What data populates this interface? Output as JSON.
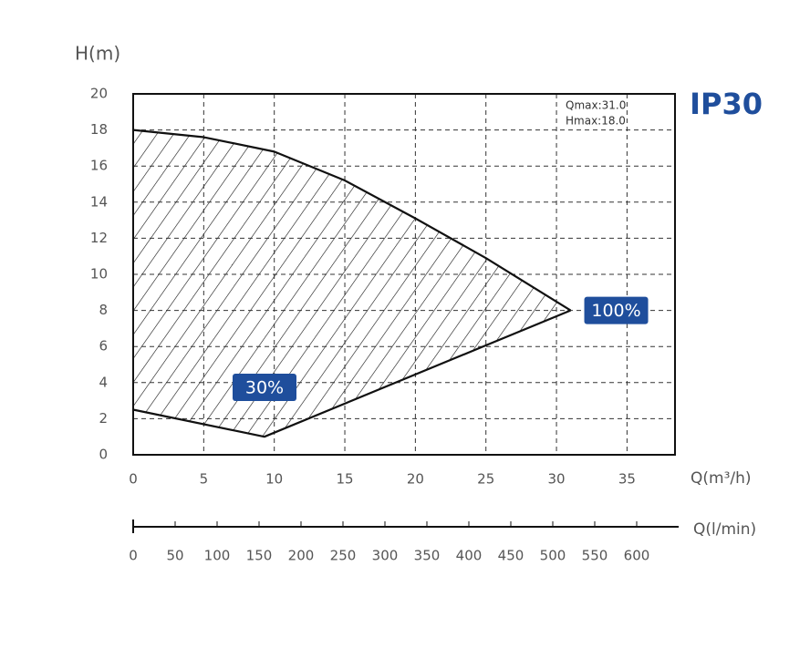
{
  "chart_data": {
    "type": "line",
    "model": "IP30",
    "y_label": "H(m)",
    "x_label": "Q(m³/h)",
    "x2_label": "Q(l/min)",
    "annotations": [
      "Qmax:31.0",
      "Hmax:18.0"
    ],
    "xlim": [
      0,
      38.4
    ],
    "xticks": [
      0,
      5,
      10,
      15,
      20,
      25,
      30,
      35
    ],
    "ylim": [
      0,
      20
    ],
    "yticks": [
      0,
      2,
      4,
      6,
      8,
      10,
      12,
      14,
      16,
      18,
      20
    ],
    "x2lim": [
      0,
      650
    ],
    "x2ticks": [
      0,
      50,
      100,
      150,
      200,
      250,
      300,
      350,
      400,
      450,
      500,
      550,
      600
    ],
    "grid": true,
    "badge_color": "#1f4e9c",
    "series": [
      {
        "name": "100%",
        "color": "#111111",
        "x": [
          0,
          5,
          10,
          15,
          20,
          25,
          31
        ],
        "values": [
          18,
          17.6,
          16.8,
          15.2,
          13.1,
          10.9,
          8.0
        ]
      },
      {
        "name": "30%",
        "color": "#111111",
        "x": [
          0,
          9.3,
          31
        ],
        "values": [
          2.5,
          1.0,
          8.0
        ]
      }
    ]
  }
}
